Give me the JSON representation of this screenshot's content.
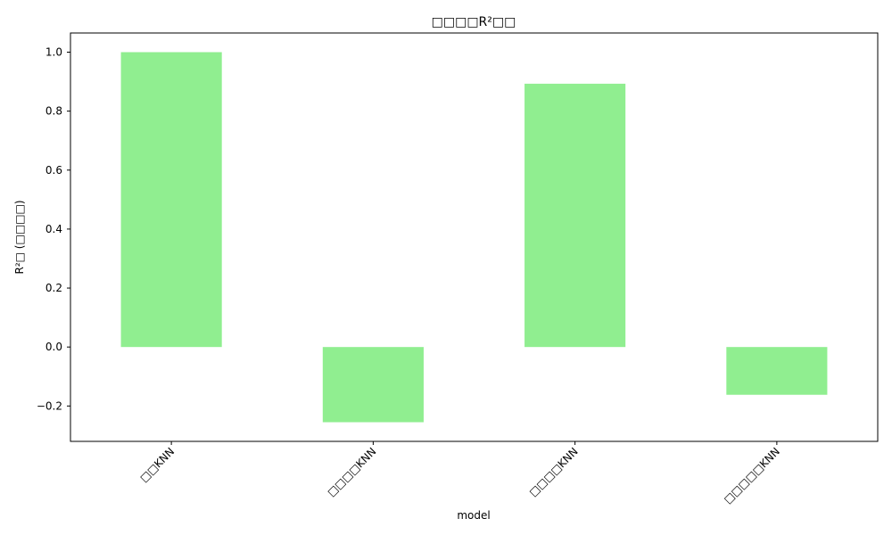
{
  "chart_data": {
    "type": "bar",
    "title": "□□□□R²□□",
    "xlabel": "model",
    "ylabel": "R²□ (□□□□)",
    "categories": [
      "□□KNN",
      "□□□□KNN",
      "□□□□KNN",
      "□□□□□KNN"
    ],
    "values": [
      1.0,
      -0.255,
      0.893,
      -0.162
    ],
    "ylim": [
      -0.32,
      1.065
    ],
    "yticks": [
      -0.2,
      0.0,
      0.2,
      0.4,
      0.6,
      0.8,
      1.0
    ],
    "ytick_labels": [
      "−0.2",
      "0.0",
      "0.2",
      "0.4",
      "0.6",
      "0.8",
      "1.0"
    ],
    "bar_color": "#90ee90",
    "grid": false,
    "legend": "none"
  }
}
